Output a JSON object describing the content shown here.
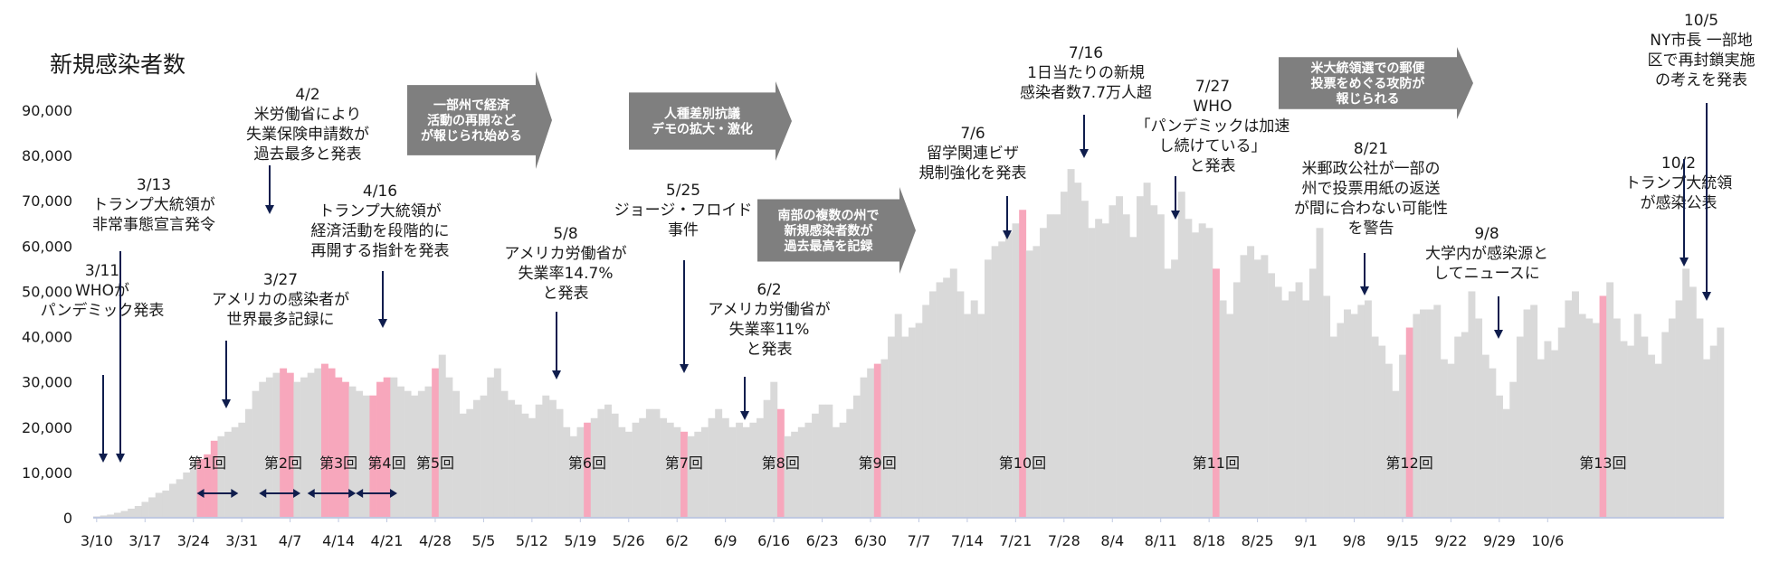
{
  "chart_data": {
    "type": "bar",
    "title": "新規感染者数",
    "ylim": [
      0,
      90000
    ],
    "yticks": [
      0,
      10000,
      20000,
      30000,
      40000,
      50000,
      60000,
      70000,
      80000,
      90000
    ],
    "ytick_labels": [
      "0",
      "10,000",
      "20,000",
      "30,000",
      "40,000",
      "50,000",
      "60,000",
      "70,000",
      "80,000",
      "90,000"
    ],
    "start_date": "2020-03-10",
    "xtick_labels": [
      "3/10",
      "3/17",
      "3/24",
      "3/31",
      "4/7",
      "4/14",
      "4/21",
      "4/28",
      "5/5",
      "5/12",
      "5/19",
      "5/26",
      "6/2",
      "6/9",
      "6/16",
      "6/23",
      "6/30",
      "7/7",
      "7/14",
      "7/21",
      "7/28",
      "8/4",
      "8/11",
      "8/18",
      "8/25",
      "9/1",
      "9/8",
      "9/15",
      "9/22",
      "9/29",
      "10/6"
    ],
    "bar_color": "#d9d9d9",
    "highlight_color": "#f7a7bc",
    "values": [
      300,
      500,
      700,
      1100,
      1500,
      2000,
      2600,
      3500,
      4500,
      5500,
      6000,
      7500,
      8500,
      10000,
      11000,
      13000,
      14000,
      17000,
      18000,
      19000,
      20000,
      21000,
      24000,
      28000,
      30000,
      31000,
      32000,
      33000,
      32000,
      30000,
      31000,
      32000,
      33000,
      34000,
      33000,
      31000,
      30000,
      29000,
      28000,
      27000,
      27000,
      30000,
      31000,
      31000,
      29000,
      28000,
      27000,
      28000,
      29000,
      33000,
      36000,
      31000,
      28000,
      23000,
      24000,
      26000,
      27000,
      31000,
      33000,
      28000,
      26000,
      25000,
      23000,
      22000,
      25000,
      27000,
      26000,
      24000,
      20000,
      18000,
      20000,
      21000,
      22000,
      24000,
      25000,
      23000,
      20000,
      19000,
      21000,
      22000,
      24000,
      24000,
      22000,
      21000,
      20000,
      19000,
      18000,
      19000,
      20000,
      22000,
      24000,
      22000,
      20000,
      21000,
      20000,
      21000,
      22000,
      26000,
      30000,
      24000,
      18000,
      19000,
      20000,
      21000,
      23000,
      25000,
      25000,
      20000,
      21000,
      24000,
      27000,
      31000,
      33000,
      34000,
      35000,
      40000,
      45000,
      40000,
      42000,
      43000,
      47000,
      50000,
      52000,
      53000,
      55000,
      50000,
      45000,
      48000,
      45000,
      57000,
      60000,
      61000,
      63000,
      65000,
      68000,
      59000,
      60000,
      64000,
      67000,
      67000,
      72000,
      77000,
      74000,
      70000,
      64000,
      66000,
      65000,
      69000,
      71000,
      67000,
      62000,
      71000,
      74000,
      69000,
      67000,
      55000,
      57000,
      72000,
      66000,
      63000,
      65000,
      64000,
      55000,
      48000,
      45000,
      52000,
      58000,
      60000,
      57000,
      58000,
      54000,
      51000,
      48000,
      50000,
      52000,
      48000,
      55000,
      64000,
      49000,
      40000,
      43000,
      46000,
      45000,
      47000,
      48000,
      40000,
      38000,
      34000,
      28000,
      36000,
      42000,
      45000,
      46000,
      46000,
      47000,
      35000,
      34000,
      40000,
      41000,
      50000,
      44000,
      36000,
      33000,
      27000,
      24000,
      30000,
      40000,
      46000,
      47000,
      35000,
      39000,
      37000,
      42000,
      48000,
      50000,
      45000,
      44000,
      43000,
      49000,
      52000,
      44000,
      39000,
      38000,
      45000,
      40000,
      36000,
      34000,
      41000,
      44000,
      48000,
      55000,
      51000,
      44000,
      35000,
      38000,
      42000
    ],
    "highlight_index": [
      15,
      16,
      17,
      27,
      28,
      33,
      34,
      35,
      36,
      40,
      41,
      42,
      49,
      71,
      85,
      99,
      113,
      134,
      162,
      190,
      218
    ],
    "rounds": [
      {
        "label": "第1回",
        "index": 16,
        "range": [
          15,
          20
        ]
      },
      {
        "label": "第2回",
        "index": 27,
        "range": [
          24,
          29
        ]
      },
      {
        "label": "第3回",
        "index": 35,
        "range": [
          31,
          37
        ]
      },
      {
        "label": "第4回",
        "index": 42,
        "range": [
          38,
          43
        ]
      },
      {
        "label": "第5回",
        "index": 49
      },
      {
        "label": "第6回",
        "index": 71
      },
      {
        "label": "第7回",
        "index": 85
      },
      {
        "label": "第8回",
        "index": 99
      },
      {
        "label": "第9回",
        "index": 113
      },
      {
        "label": "第10回",
        "index": 134
      },
      {
        "label": "第11回",
        "index": 162
      },
      {
        "label": "第12回",
        "index": 190
      },
      {
        "label": "第13回",
        "index": 218
      }
    ],
    "annotations": [
      {
        "lines": [
          "3/11",
          "WHOが",
          "パンデミック発表"
        ],
        "x": 113,
        "y": 305,
        "arrow_x": 114,
        "arrow_from": 415,
        "arrow_to": 512
      },
      {
        "lines": [
          "3/13",
          "トランプ大統領が",
          "非常事態宣言発令"
        ],
        "x": 170,
        "y": 210,
        "arrow_x": 133,
        "arrow_from": 278,
        "arrow_to": 512
      },
      {
        "lines": [
          "4/2",
          "米労働省により",
          "失業保険申請数が",
          "過去最多と発表"
        ],
        "x": 340,
        "y": 110,
        "arrow_x": 298,
        "arrow_from": 183,
        "arrow_to": 237
      },
      {
        "lines": [
          "3/27",
          "アメリカの感染者が",
          "世界最多記録に"
        ],
        "x": 310,
        "y": 315,
        "arrow_x": 250,
        "arrow_from": 377,
        "arrow_to": 452
      },
      {
        "lines": [
          "4/16",
          "トランプ大統領が",
          "経済活動を段階的に",
          "再開する指針を発表"
        ],
        "x": 420,
        "y": 217,
        "arrow_x": 423,
        "arrow_from": 300,
        "arrow_to": 363
      },
      {
        "lines": [
          "5/8",
          "アメリカ労働省が",
          "失業率14.7%",
          "と発表"
        ],
        "x": 625,
        "y": 264,
        "arrow_x": 615,
        "arrow_from": 345,
        "arrow_to": 420
      },
      {
        "lines": [
          "5/25",
          "ジョージ・フロイド",
          "事件"
        ],
        "x": 755,
        "y": 216,
        "arrow_x": 756,
        "arrow_from": 288,
        "arrow_to": 413
      },
      {
        "lines": [
          "6/2",
          "アメリカ労働省が",
          "失業率11%",
          "と発表"
        ],
        "x": 850,
        "y": 326,
        "arrow_x": 823,
        "arrow_from": 417,
        "arrow_to": 465
      },
      {
        "lines": [
          "7/6",
          "留学関連ビザ",
          "規制強化を発表"
        ],
        "x": 1075,
        "y": 153,
        "arrow_x": 1113,
        "arrow_from": 217,
        "arrow_to": 265
      },
      {
        "lines": [
          "7/16",
          "1日当たりの新規",
          "感染者数7.7万人超"
        ],
        "x": 1200,
        "y": 64,
        "arrow_x": 1198,
        "arrow_from": 127,
        "arrow_to": 175
      },
      {
        "lines": [
          "7/27",
          "WHO",
          "「パンデミックは加速",
          "し続けている」",
          "と発表"
        ],
        "x": 1340,
        "y": 101,
        "arrow_x": 1299,
        "arrow_from": 195,
        "arrow_to": 243
      },
      {
        "lines": [
          "8/21",
          "米郵政公社が一部の",
          "州で投票用紙の返送",
          "が間に合わない可能性",
          "を警告"
        ],
        "x": 1515,
        "y": 170,
        "arrow_x": 1508,
        "arrow_from": 280,
        "arrow_to": 327
      },
      {
        "lines": [
          "9/8",
          "大学内が感染源と",
          "してニュースに"
        ],
        "x": 1643,
        "y": 264,
        "arrow_x": 1656,
        "arrow_from": 328,
        "arrow_to": 375
      },
      {
        "lines": [
          "10/2",
          "トランプ大統領",
          "が感染公表"
        ],
        "x": 1855,
        "y": 186,
        "arrow_x": 1861,
        "arrow_from": 176,
        "arrow_to": 295
      },
      {
        "lines": [
          "10/5",
          "NY市長 一部地",
          "区で再封鎖実施",
          "の考えを発表"
        ],
        "x": 1880,
        "y": 28,
        "arrow_x": 1886,
        "arrow_from": 114,
        "arrow_to": 333
      }
    ],
    "banners": [
      {
        "lines": [
          "一部州で経済",
          "活動の再開など",
          "が報じられ始める"
        ],
        "x": 450,
        "y": 79,
        "w": 160,
        "h": 108
      },
      {
        "lines": [
          "人種差別抗議",
          "デモの拡大・激化"
        ],
        "x": 695,
        "y": 90,
        "w": 180,
        "h": 88
      },
      {
        "lines": [
          "南部の複数の州で",
          "新規感染者数が",
          "過去最高を記録"
        ],
        "x": 837,
        "y": 207,
        "w": 175,
        "h": 96
      },
      {
        "lines": [
          "米大統領選での郵便",
          "投票をめぐる攻防が",
          "報じられる"
        ],
        "x": 1413,
        "y": 52,
        "w": 215,
        "h": 80
      }
    ]
  }
}
